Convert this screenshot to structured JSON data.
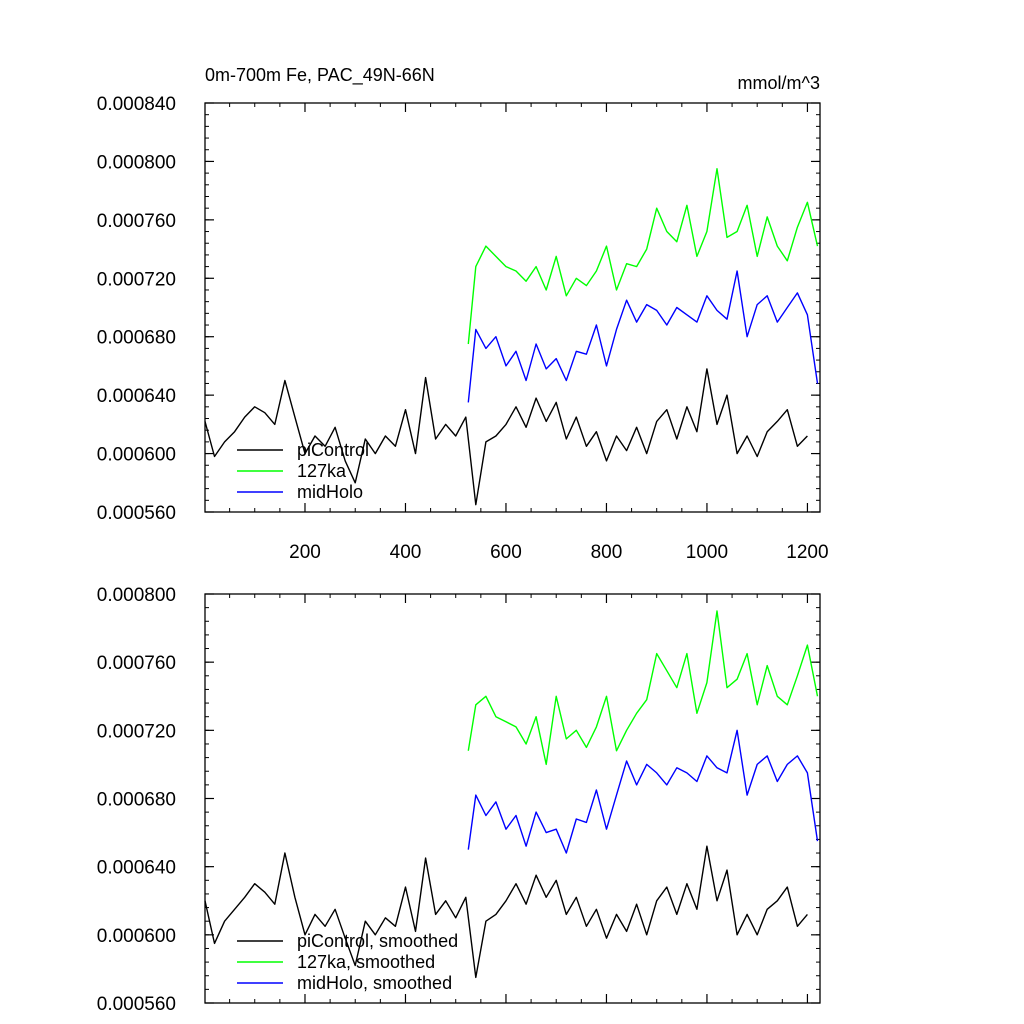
{
  "chart_data": [
    {
      "type": "line",
      "title": "0m-700m Fe, PAC_49N-66N",
      "units_label": "mmol/m^3",
      "xlabel": "",
      "ylabel": "",
      "xlim": [
        1,
        1225
      ],
      "ylim": [
        0.00056,
        0.00084
      ],
      "yticks": [
        "0.000840",
        "0.000800",
        "0.000760",
        "0.000720",
        "0.000680",
        "0.000640",
        "0.000600",
        "0.000560"
      ],
      "xticks": [
        "200",
        "400",
        "600",
        "800",
        "1000",
        "1200"
      ],
      "legend_position": "bottom-left",
      "series": [
        {
          "name": "piControl",
          "color": "#000000",
          "x": [
            1,
            20,
            40,
            60,
            80,
            100,
            120,
            140,
            160,
            180,
            200,
            220,
            240,
            260,
            280,
            300,
            320,
            340,
            360,
            380,
            400,
            420,
            440,
            460,
            480,
            500,
            520,
            540,
            560,
            580,
            600,
            620,
            640,
            660,
            680,
            700,
            720,
            740,
            760,
            780,
            800,
            820,
            840,
            860,
            880,
            900,
            920,
            940,
            960,
            980,
            1000,
            1020,
            1040,
            1060,
            1080,
            1100,
            1120,
            1140,
            1160,
            1180,
            1200
          ],
          "values": [
            0.000622,
            0.000598,
            0.000608,
            0.000615,
            0.000625,
            0.000632,
            0.000628,
            0.00062,
            0.00065,
            0.000625,
            0.0006,
            0.000612,
            0.000605,
            0.000618,
            0.000595,
            0.00058,
            0.00061,
            0.0006,
            0.000612,
            0.000605,
            0.00063,
            0.0006,
            0.000652,
            0.00061,
            0.00062,
            0.000612,
            0.000625,
            0.000565,
            0.000608,
            0.000612,
            0.00062,
            0.000632,
            0.000618,
            0.000638,
            0.000622,
            0.000635,
            0.00061,
            0.000625,
            0.000605,
            0.000615,
            0.000595,
            0.000612,
            0.000602,
            0.000618,
            0.0006,
            0.000622,
            0.00063,
            0.00061,
            0.000632,
            0.000615,
            0.000658,
            0.00062,
            0.00064,
            0.0006,
            0.000612,
            0.000598,
            0.000615,
            0.000622,
            0.00063,
            0.000605,
            0.000612
          ]
        },
        {
          "name": "127ka",
          "color": "#00ff00",
          "x": [
            525,
            540,
            560,
            580,
            600,
            620,
            640,
            660,
            680,
            700,
            720,
            740,
            760,
            780,
            800,
            820,
            840,
            860,
            880,
            900,
            920,
            940,
            960,
            980,
            1000,
            1020,
            1040,
            1060,
            1080,
            1100,
            1120,
            1140,
            1160,
            1180,
            1200,
            1220
          ],
          "values": [
            0.000675,
            0.000728,
            0.000742,
            0.000735,
            0.000728,
            0.000725,
            0.000718,
            0.000728,
            0.000712,
            0.000735,
            0.000708,
            0.00072,
            0.000715,
            0.000725,
            0.000742,
            0.000712,
            0.00073,
            0.000728,
            0.00074,
            0.000768,
            0.000752,
            0.000745,
            0.00077,
            0.000735,
            0.000752,
            0.000795,
            0.000748,
            0.000752,
            0.00077,
            0.000735,
            0.000762,
            0.000742,
            0.000732,
            0.000755,
            0.000772,
            0.000742
          ]
        },
        {
          "name": "midHolo",
          "color": "#0000ff",
          "x": [
            525,
            540,
            560,
            580,
            600,
            620,
            640,
            660,
            680,
            700,
            720,
            740,
            760,
            780,
            800,
            820,
            840,
            860,
            880,
            900,
            920,
            940,
            960,
            980,
            1000,
            1020,
            1040,
            1060,
            1080,
            1100,
            1120,
            1140,
            1160,
            1180,
            1200,
            1220
          ],
          "values": [
            0.000635,
            0.000685,
            0.000672,
            0.00068,
            0.00066,
            0.00067,
            0.00065,
            0.000675,
            0.000658,
            0.000665,
            0.00065,
            0.00067,
            0.000668,
            0.000688,
            0.00066,
            0.000685,
            0.000705,
            0.00069,
            0.000702,
            0.000698,
            0.000688,
            0.0007,
            0.000695,
            0.00069,
            0.000708,
            0.000698,
            0.000692,
            0.000725,
            0.00068,
            0.000702,
            0.000708,
            0.00069,
            0.0007,
            0.00071,
            0.000695,
            0.000648
          ]
        }
      ]
    },
    {
      "type": "line",
      "title": "",
      "xlabel": "",
      "ylabel": "",
      "xlim": [
        1,
        1225
      ],
      "ylim": [
        0.00056,
        0.0008
      ],
      "yticks": [
        "0.000800",
        "0.000760",
        "0.000720",
        "0.000680",
        "0.000640",
        "0.000600",
        "0.000560"
      ],
      "legend_position": "bottom-left",
      "series": [
        {
          "name": "piControl, smoothed",
          "color": "#000000",
          "x": [
            1,
            20,
            40,
            60,
            80,
            100,
            120,
            140,
            160,
            180,
            200,
            220,
            240,
            260,
            280,
            300,
            320,
            340,
            360,
            380,
            400,
            420,
            440,
            460,
            480,
            500,
            520,
            540,
            560,
            580,
            600,
            620,
            640,
            660,
            680,
            700,
            720,
            740,
            760,
            780,
            800,
            820,
            840,
            860,
            880,
            900,
            920,
            940,
            960,
            980,
            1000,
            1020,
            1040,
            1060,
            1080,
            1100,
            1120,
            1140,
            1160,
            1180,
            1200
          ],
          "values": [
            0.00062,
            0.000595,
            0.000608,
            0.000615,
            0.000622,
            0.00063,
            0.000625,
            0.000618,
            0.000648,
            0.000622,
            0.0006,
            0.000612,
            0.000605,
            0.000615,
            0.000598,
            0.000582,
            0.000608,
            0.0006,
            0.00061,
            0.000605,
            0.000628,
            0.000602,
            0.000645,
            0.000612,
            0.00062,
            0.00061,
            0.000622,
            0.000575,
            0.000608,
            0.000612,
            0.00062,
            0.00063,
            0.000618,
            0.000635,
            0.000622,
            0.000632,
            0.000612,
            0.000622,
            0.000605,
            0.000615,
            0.000598,
            0.000612,
            0.000602,
            0.000618,
            0.0006,
            0.00062,
            0.000628,
            0.000612,
            0.00063,
            0.000615,
            0.000652,
            0.00062,
            0.000638,
            0.0006,
            0.000612,
            0.0006,
            0.000615,
            0.00062,
            0.000628,
            0.000605,
            0.000612
          ]
        },
        {
          "name": "127ka, smoothed",
          "color": "#00ff00",
          "x": [
            525,
            540,
            560,
            580,
            600,
            620,
            640,
            660,
            680,
            700,
            720,
            740,
            760,
            780,
            800,
            820,
            840,
            860,
            880,
            900,
            920,
            940,
            960,
            980,
            1000,
            1020,
            1040,
            1060,
            1080,
            1100,
            1120,
            1140,
            1160,
            1180,
            1200,
            1220
          ],
          "values": [
            0.000708,
            0.000735,
            0.00074,
            0.000728,
            0.000725,
            0.000722,
            0.000712,
            0.000728,
            0.0007,
            0.00074,
            0.000715,
            0.00072,
            0.00071,
            0.000722,
            0.00074,
            0.000708,
            0.00072,
            0.00073,
            0.000738,
            0.000765,
            0.000755,
            0.000745,
            0.000765,
            0.00073,
            0.000748,
            0.00079,
            0.000745,
            0.00075,
            0.000765,
            0.000735,
            0.000758,
            0.00074,
            0.000735,
            0.000752,
            0.00077,
            0.00074
          ]
        },
        {
          "name": "midHolo, smoothed",
          "color": "#0000ff",
          "x": [
            525,
            540,
            560,
            580,
            600,
            620,
            640,
            660,
            680,
            700,
            720,
            740,
            760,
            780,
            800,
            820,
            840,
            860,
            880,
            900,
            920,
            940,
            960,
            980,
            1000,
            1020,
            1040,
            1060,
            1080,
            1100,
            1120,
            1140,
            1160,
            1180,
            1200,
            1220
          ],
          "values": [
            0.00065,
            0.000682,
            0.00067,
            0.000678,
            0.000662,
            0.00067,
            0.000652,
            0.000672,
            0.00066,
            0.000662,
            0.000648,
            0.000668,
            0.000666,
            0.000685,
            0.000662,
            0.000682,
            0.000702,
            0.000688,
            0.0007,
            0.000695,
            0.000688,
            0.000698,
            0.000695,
            0.00069,
            0.000705,
            0.000698,
            0.000695,
            0.00072,
            0.000682,
            0.0007,
            0.000705,
            0.00069,
            0.0007,
            0.000705,
            0.000695,
            0.000655
          ]
        }
      ]
    }
  ]
}
